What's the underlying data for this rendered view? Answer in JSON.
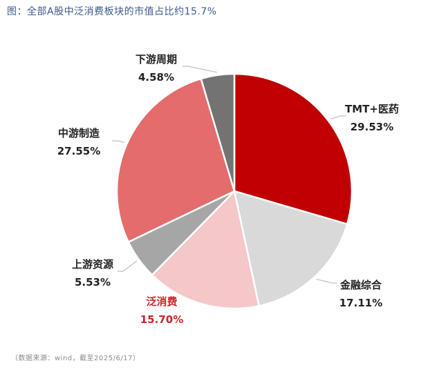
{
  "title": "图：全部A股中泛消费板块的市值占比约15.7%",
  "source": "（数据来源：wind，截至2025/6/17）",
  "chart_data": {
    "type": "pie",
    "title": "图：全部A股中泛消费板块的市值占比约15.7%",
    "slices": [
      {
        "name": "TMT+医药",
        "label": "29.53%",
        "value": 29.53,
        "color": "#c00000"
      },
      {
        "name": "金融综合",
        "label": "17.11%",
        "value": 17.11,
        "color": "#d9d9d9"
      },
      {
        "name": "泛消费",
        "label": "15.70%",
        "value": 15.7,
        "color": "#f4c7c9",
        "highlight": true
      },
      {
        "name": "上游资源",
        "label": "5.53%",
        "value": 5.53,
        "color": "#a6a6a6"
      },
      {
        "name": "中游制造",
        "label": "27.55%",
        "value": 27.55,
        "color": "#e46c6c"
      },
      {
        "name": "下游周期",
        "label": "4.58%",
        "value": 4.58,
        "color": "#737373"
      }
    ],
    "highlight_color": "#cc2027"
  }
}
